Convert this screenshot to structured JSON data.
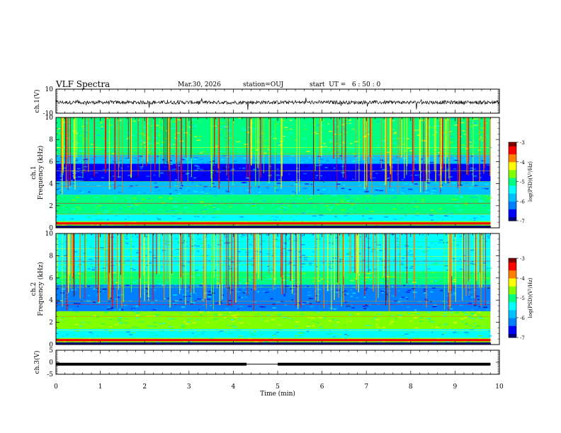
{
  "header": {
    "title": "VLF Spectra",
    "date": "Mar.30, 2026",
    "station": "station=OUJ",
    "start": "start  UT =   6 : 50 : 0"
  },
  "colors": {
    "cmap": [
      "#000080",
      "#0000ff",
      "#0080ff",
      "#00c0ff",
      "#00ffff",
      "#00ff80",
      "#80ff00",
      "#ffff00",
      "#ff8000",
      "#ff0000",
      "#800000"
    ]
  },
  "chart_data": [
    {
      "type": "line",
      "panel": "ch1-waveform",
      "ylabel": "ch.1(V)",
      "ylim": [
        -10,
        10
      ],
      "yticks": [
        "10",
        "-10"
      ],
      "x_range_min": [
        0,
        10
      ],
      "series": [
        {
          "values_description": "waveform",
          "mean": -1.0,
          "amplitude": 1.5
        }
      ]
    },
    {
      "type": "heatmap",
      "panel": "ch1-spectrogram",
      "ylabel": "ch.1\nFrequency  (kHz)",
      "ylim": [
        0,
        10
      ],
      "yticks": [
        "0",
        "2",
        "4",
        "6",
        "8",
        "10"
      ],
      "x_range_min": [
        0,
        9.8
      ],
      "colorbar": {
        "label": "log(PSD)(V²/Hz)",
        "range": [
          -7,
          -3
        ],
        "ticks": [
          "-3",
          "-4",
          "-5",
          "-6",
          "-7"
        ]
      },
      "bands_khz": [
        {
          "from": 0.0,
          "to": 0.6,
          "level": -4.5
        },
        {
          "from": 0.6,
          "to": 1.2,
          "level": -5.6
        },
        {
          "from": 1.2,
          "to": 3.0,
          "level": -5.2
        },
        {
          "from": 3.0,
          "to": 4.2,
          "level": -5.9
        },
        {
          "from": 4.2,
          "to": 5.8,
          "level": -6.4
        },
        {
          "from": 5.8,
          "to": 6.6,
          "level": -5.9
        },
        {
          "from": 6.6,
          "to": 10.0,
          "level": -4.9
        }
      ]
    },
    {
      "type": "heatmap",
      "panel": "ch2-spectrogram",
      "ylabel": "ch.2\nFrequency  (kHz)",
      "ylim": [
        0,
        10
      ],
      "yticks": [
        "0",
        "2",
        "4",
        "6",
        "8",
        "10"
      ],
      "x_range_min": [
        0,
        9.8
      ],
      "colorbar": {
        "label": "log(PSD)(V²/Hz)",
        "range": [
          -7,
          -3
        ],
        "ticks": [
          "-3",
          "-4",
          "-5",
          "-6",
          "-7"
        ]
      },
      "bands_khz": [
        {
          "from": 0.0,
          "to": 0.6,
          "level": -4.6
        },
        {
          "from": 0.6,
          "to": 1.4,
          "level": -5.4
        },
        {
          "from": 1.4,
          "to": 3.0,
          "level": -4.8
        },
        {
          "from": 3.0,
          "to": 5.4,
          "level": -6.2
        },
        {
          "from": 5.4,
          "to": 6.6,
          "level": -5.0
        },
        {
          "from": 6.6,
          "to": 10.0,
          "level": -5.6
        }
      ]
    },
    {
      "type": "line",
      "panel": "ch3-waveform",
      "ylabel": "ch.3(V)",
      "ylim": [
        -5,
        5
      ],
      "yticks": [
        "5",
        "0",
        "-5"
      ],
      "x_range_min": [
        0,
        9.8
      ],
      "series": [
        {
          "values_description": "flat level",
          "mean": -0.8,
          "gap_from": 4.3,
          "gap_to": 5.0
        }
      ]
    }
  ],
  "xaxis": {
    "label": "Time  (min)",
    "ticks": [
      "0",
      "1",
      "2",
      "3",
      "4",
      "5",
      "6",
      "7",
      "8",
      "9",
      "10"
    ],
    "xlim": [
      0,
      10
    ]
  }
}
